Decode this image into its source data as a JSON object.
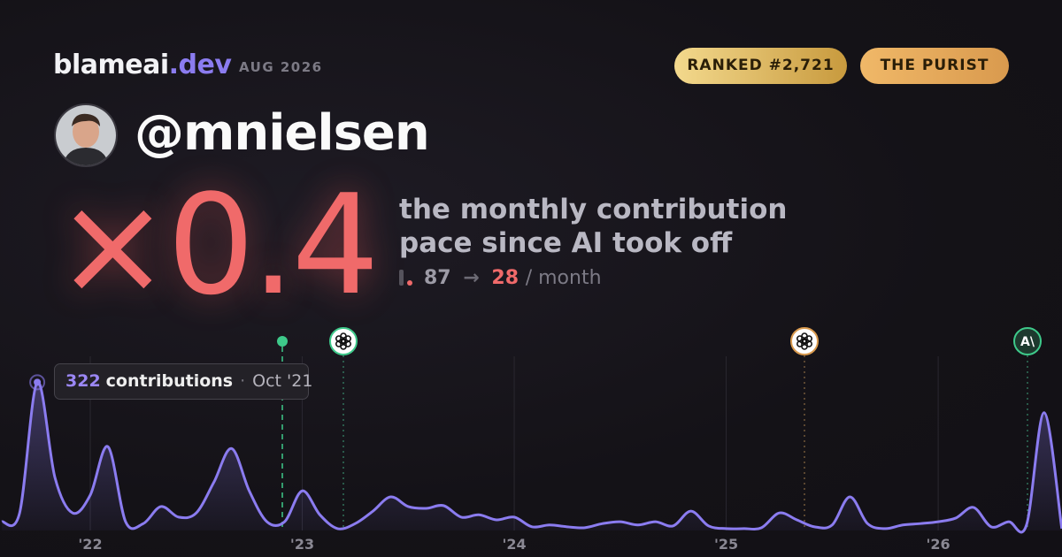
{
  "header": {
    "brand": "blameai",
    "brand_suffix": ".dev",
    "date": "AUG 2026",
    "badges": [
      "RANKED #2,721",
      "THE PURIST"
    ]
  },
  "profile": {
    "handle": "@mnielsen"
  },
  "headline": {
    "multiplier": "×0.4",
    "description": [
      "the monthly contribution",
      "pace since AI took off"
    ],
    "before": 87,
    "arrow": "→",
    "after": 28,
    "unit": "/ month"
  },
  "tooltip": {
    "unit": "contributions",
    "separator": "·",
    "date": "Oct '21"
  },
  "annotations": [
    {
      "label": "A\\"
    }
  ],
  "chart_data": {
    "type": "line",
    "color": "#8b7cf0",
    "x": [
      "2021-08",
      "2021-09",
      "2021-10",
      "2021-11",
      "2021-12",
      "2022-01",
      "2022-02",
      "2022-03",
      "2022-04",
      "2022-05",
      "2022-06",
      "2022-07",
      "2022-08",
      "2022-09",
      "2022-10",
      "2022-11",
      "2022-12",
      "2023-01",
      "2023-02",
      "2023-03",
      "2023-04",
      "2023-05",
      "2023-06",
      "2023-07",
      "2023-08",
      "2023-09",
      "2023-10",
      "2023-11",
      "2023-12",
      "2024-01",
      "2024-02",
      "2024-03",
      "2024-04",
      "2024-05",
      "2024-06",
      "2024-07",
      "2024-08",
      "2024-09",
      "2024-10",
      "2024-11",
      "2024-12",
      "2025-01",
      "2025-02",
      "2025-03",
      "2025-04",
      "2025-05",
      "2025-06",
      "2025-07",
      "2025-08",
      "2025-09",
      "2025-10",
      "2025-11",
      "2025-12",
      "2026-01",
      "2026-02",
      "2026-03",
      "2026-04",
      "2026-05",
      "2026-06",
      "2026-07",
      "2026-08"
    ],
    "values": [
      19,
      38,
      322,
      115,
      38,
      77,
      182,
      19,
      15,
      52,
      29,
      38,
      105,
      178,
      86,
      19,
      19,
      86,
      34,
      4,
      15,
      42,
      73,
      52,
      48,
      54,
      29,
      34,
      23,
      29,
      8,
      12,
      8,
      6,
      15,
      19,
      12,
      19,
      10,
      42,
      10,
      4,
      4,
      6,
      38,
      23,
      8,
      12,
      73,
      15,
      4,
      12,
      15,
      19,
      27,
      50,
      8,
      19,
      12,
      256,
      4
    ],
    "ylim": [
      0,
      340
    ],
    "xticks": [
      {
        "value": "2022-01",
        "label": "'22"
      },
      {
        "value": "2023-01",
        "label": "'23"
      },
      {
        "value": "2024-01",
        "label": "'24"
      },
      {
        "value": "2025-01",
        "label": "'25"
      },
      {
        "value": "2026-01",
        "label": "'26"
      }
    ],
    "grid": true
  }
}
